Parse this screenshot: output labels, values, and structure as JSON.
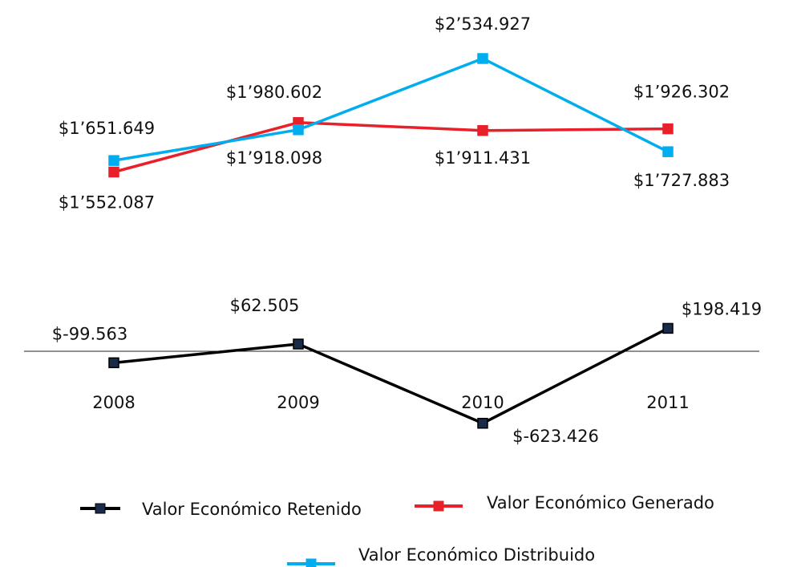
{
  "chart_data": {
    "type": "line",
    "categories": [
      "2008",
      "2009",
      "2010",
      "2011"
    ],
    "ylim": [
      -1000000,
      3000000
    ],
    "series": [
      {
        "name": "Valor Económico Retenido",
        "color": "#000000",
        "values": [
          -99563,
          62505,
          -623426,
          198419
        ],
        "value_labels": [
          "$-99.563",
          "$62.505",
          "$-623.426",
          "$198.419"
        ]
      },
      {
        "name": "Valor Económico Generado",
        "color": "#e8202a",
        "values": [
          1552087,
          1980602,
          1911431,
          1926302
        ],
        "value_labels": [
          "$1’552.087",
          "$1’980.602",
          "$1’911.431",
          "$1’926.302"
        ]
      },
      {
        "name": "Valor Económico Distribuido",
        "color": "#00aeef",
        "values": [
          1651649,
          1918098,
          2534927,
          1727883
        ],
        "value_labels": [
          "$1’651.649",
          "$1’918.098",
          "$2’534.927",
          "$1’727.883"
        ]
      }
    ]
  }
}
